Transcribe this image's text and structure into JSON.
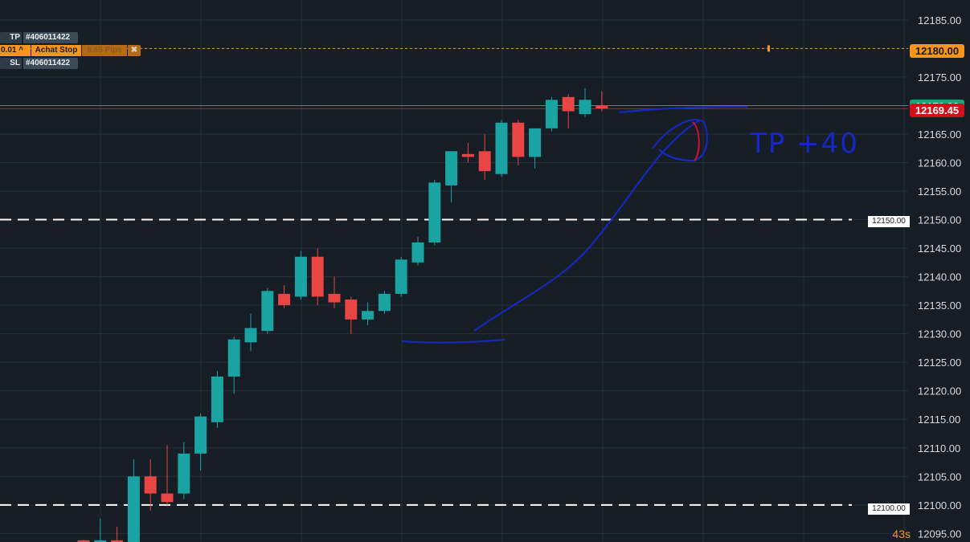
{
  "chart_data": {
    "type": "candlestick",
    "ylim": [
      12093.5,
      12188.5
    ],
    "ticks": [
      12095,
      12100,
      12105,
      12110,
      12115,
      12120,
      12125,
      12130,
      12135,
      12140,
      12145,
      12150,
      12155,
      12160,
      12165,
      12170,
      12175,
      12180,
      12185
    ],
    "tick_labels": [
      "12095.00",
      "12100.00",
      "12105.00",
      "12110.00",
      "12115.00",
      "12120.00",
      "12125.00",
      "12130.00",
      "12135.00",
      "12140.00",
      "12145.00",
      "12150.00",
      "12155.00",
      "12160.00",
      "12165.00",
      "12170.00",
      "12175.00",
      "12180.00",
      "12185.00"
    ],
    "candles": [
      {
        "o": 12093.8,
        "h": 12093.9,
        "c": 12093.5,
        "l": 12093.5
      },
      {
        "o": 12093.5,
        "h": 12097.6,
        "c": 12093.8,
        "l": 12093.5
      },
      {
        "o": 12093.8,
        "h": 12096.2,
        "c": 12093.5,
        "l": 12093.5
      },
      {
        "o": 12093.5,
        "h": 12108.0,
        "c": 12105.0,
        "l": 12093.5
      },
      {
        "o": 12105.0,
        "h": 12108.0,
        "c": 12102.0,
        "l": 12099.0
      },
      {
        "o": 12102.0,
        "h": 12110.5,
        "c": 12100.5,
        "l": 12100.0
      },
      {
        "o": 12102.0,
        "h": 12111.0,
        "c": 12109.0,
        "l": 12101.0
      },
      {
        "o": 12109.0,
        "h": 12116.0,
        "c": 12115.5,
        "l": 12106.0
      },
      {
        "o": 12114.5,
        "h": 12123.5,
        "c": 12122.5,
        "l": 12113.5
      },
      {
        "o": 12122.5,
        "h": 12129.5,
        "c": 12129.0,
        "l": 12119.5
      },
      {
        "o": 12128.5,
        "h": 12133.5,
        "c": 12131.0,
        "l": 12127.0
      },
      {
        "o": 12130.5,
        "h": 12138.0,
        "c": 12137.5,
        "l": 12130.0
      },
      {
        "o": 12137.0,
        "h": 12138.5,
        "c": 12135.0,
        "l": 12134.5
      },
      {
        "o": 12136.5,
        "h": 12144.5,
        "c": 12143.5,
        "l": 12136.0
      },
      {
        "o": 12143.5,
        "h": 12145.0,
        "c": 12136.5,
        "l": 12135.0
      },
      {
        "o": 12137.0,
        "h": 12140.0,
        "c": 12135.5,
        "l": 12134.5
      },
      {
        "o": 12136.0,
        "h": 12136.5,
        "c": 12132.5,
        "l": 12130.0
      },
      {
        "o": 12132.5,
        "h": 12135.5,
        "c": 12134.0,
        "l": 12131.5
      },
      {
        "o": 12134.0,
        "h": 12137.5,
        "c": 12137.0,
        "l": 12133.5
      },
      {
        "o": 12137.0,
        "h": 12143.5,
        "c": 12143.0,
        "l": 12136.5
      },
      {
        "o": 12142.5,
        "h": 12147.0,
        "c": 12146.0,
        "l": 12142.0
      },
      {
        "o": 12146.0,
        "h": 12157.0,
        "c": 12156.5,
        "l": 12145.5
      },
      {
        "o": 12156.0,
        "h": 12162.0,
        "c": 12162.0,
        "l": 12153.0
      },
      {
        "o": 12161.5,
        "h": 12163.5,
        "c": 12161.0,
        "l": 12160.0
      },
      {
        "o": 12162.0,
        "h": 12165.0,
        "c": 12158.5,
        "l": 12157.0
      },
      {
        "o": 12158.0,
        "h": 12167.5,
        "c": 12167.0,
        "l": 12157.5
      },
      {
        "o": 12167.0,
        "h": 12167.5,
        "c": 12161.0,
        "l": 12159.5
      },
      {
        "o": 12161.0,
        "h": 12166.0,
        "c": 12166.0,
        "l": 12159.0
      },
      {
        "o": 12166.0,
        "h": 12171.5,
        "c": 12171.0,
        "l": 12165.5
      },
      {
        "o": 12171.5,
        "h": 12172.0,
        "c": 12169.0,
        "l": 12166.0
      },
      {
        "o": 12168.5,
        "h": 12173.0,
        "c": 12171.0,
        "l": 12168.0
      },
      {
        "o": 12170.0,
        "h": 12172.5,
        "c": 12169.5,
        "l": 12169.0
      }
    ],
    "reference_lines": {
      "order_price": 12180.0,
      "green_line": 12170.0,
      "current_price": 12169.45,
      "dashed_levels": [
        12150.0,
        12100.0
      ]
    },
    "annotation_text": "TP +40"
  },
  "labels": {
    "tp_key": "TP",
    "tp_id": "#406011422",
    "order_qty": "0.01 ^",
    "order_type": "Achat Stop",
    "order_pips": "9.65 Pips",
    "order_close": "✖",
    "sl_key": "SL",
    "sl_id": "#406011422",
    "order_price_tag": "12180.00",
    "current_price_tag": "12169.45",
    "green_price_tag": "12170.00",
    "level_150": "12150.00",
    "level_100": "12100.00",
    "timer": "43s"
  },
  "colors": {
    "background": "#161d25",
    "grid": "#26303a",
    "up": "#1aa3a3",
    "down": "#e84545",
    "order": "#f7941d",
    "current": "#d0101c",
    "green": "#1aa37a",
    "drawing": "#1428c8",
    "drawing_red": "#d01030"
  }
}
